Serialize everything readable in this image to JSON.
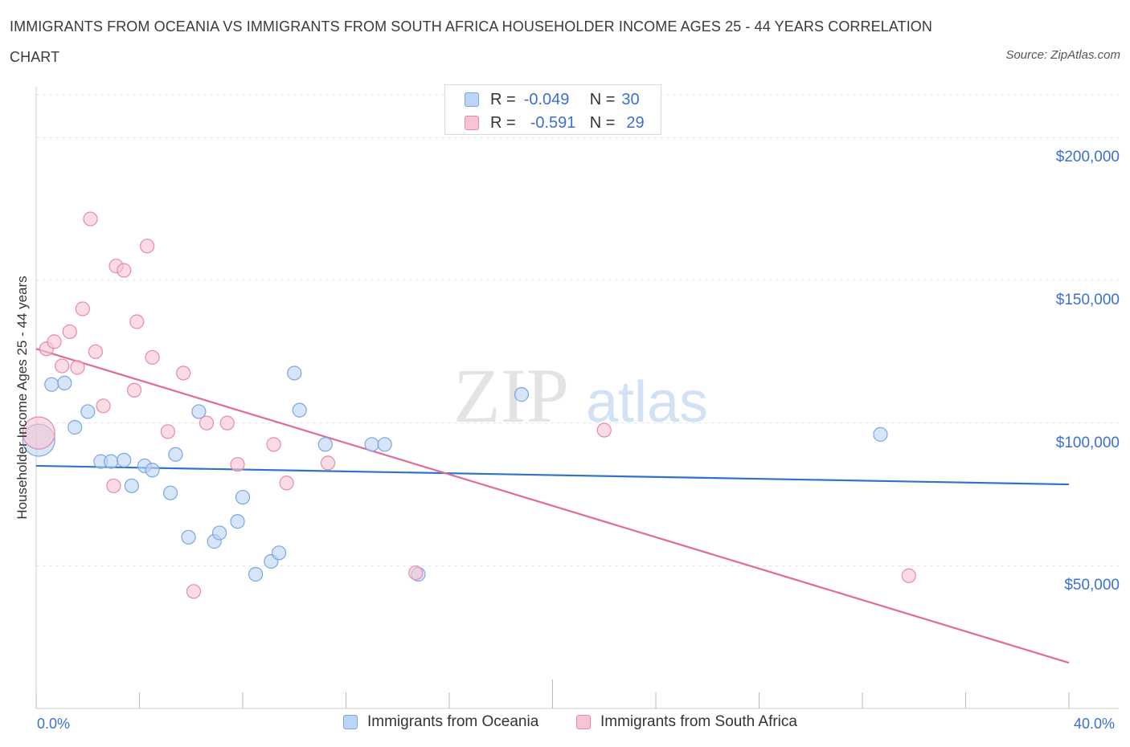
{
  "title": "IMMIGRANTS FROM OCEANIA VS IMMIGRANTS FROM SOUTH AFRICA HOUSEHOLDER INCOME AGES 25 - 44 YEARS CORRELATION CHART",
  "source": "Source: ZipAtlas.com",
  "watermark": {
    "zip": "ZIP",
    "atlas": "atlas"
  },
  "legend": {
    "r_label": "R =",
    "n_label": "N =",
    "rows": [
      {
        "r": "-0.049",
        "n": "30"
      },
      {
        "r": "-0.591",
        "n": "29"
      }
    ]
  },
  "colors": {
    "oceania_fill": "#bcd4f5",
    "oceania_stroke": "#7aa7e0",
    "oceania_line": "#2f74c8",
    "safrica_fill": "#f8c4d4",
    "safrica_stroke": "#e68aa9",
    "safrica_line": "#e06a98"
  },
  "chart_data": {
    "type": "scatter",
    "title": "IMMIGRANTS FROM OCEANIA VS IMMIGRANTS FROM SOUTH AFRICA HOUSEHOLDER INCOME AGES 25 - 44 YEARS CORRELATION CHART",
    "xlabel": "",
    "ylabel": "Householder Income Ages 25 - 44 years",
    "xlim": [
      0,
      40
    ],
    "ylim": [
      0,
      215000
    ],
    "x_tick_labels": [
      "0.0%",
      "40.0%"
    ],
    "y_ticks": [
      {
        "value": 50000,
        "label": "$50,000"
      },
      {
        "value": 100000,
        "label": "$100,000"
      },
      {
        "value": 150000,
        "label": "$150,000"
      },
      {
        "value": 200000,
        "label": "$200,000"
      }
    ],
    "grid": true,
    "legend_position": "top-center",
    "series": [
      {
        "name": "Immigrants from Oceania",
        "r": -0.049,
        "n": 30,
        "trend": {
          "x": [
            0,
            40
          ],
          "y": [
            85000,
            78500
          ]
        },
        "points": [
          {
            "x": 0.1,
            "y": 94000,
            "big": true
          },
          {
            "x": 0.6,
            "y": 113500
          },
          {
            "x": 1.1,
            "y": 114000
          },
          {
            "x": 1.5,
            "y": 98500
          },
          {
            "x": 2.0,
            "y": 104000
          },
          {
            "x": 2.5,
            "y": 86500
          },
          {
            "x": 2.9,
            "y": 86500
          },
          {
            "x": 3.4,
            "y": 87000
          },
          {
            "x": 3.7,
            "y": 78000
          },
          {
            "x": 4.2,
            "y": 85000
          },
          {
            "x": 4.5,
            "y": 83500
          },
          {
            "x": 5.2,
            "y": 75500
          },
          {
            "x": 5.4,
            "y": 89000
          },
          {
            "x": 5.9,
            "y": 60000
          },
          {
            "x": 6.3,
            "y": 104000
          },
          {
            "x": 6.9,
            "y": 58500
          },
          {
            "x": 7.1,
            "y": 61500
          },
          {
            "x": 7.8,
            "y": 65500
          },
          {
            "x": 8.0,
            "y": 74000
          },
          {
            "x": 8.5,
            "y": 47000
          },
          {
            "x": 9.1,
            "y": 51500
          },
          {
            "x": 9.4,
            "y": 54500
          },
          {
            "x": 10.0,
            "y": 117500
          },
          {
            "x": 10.2,
            "y": 104500
          },
          {
            "x": 11.2,
            "y": 92500
          },
          {
            "x": 13.0,
            "y": 92500
          },
          {
            "x": 13.5,
            "y": 92500
          },
          {
            "x": 14.8,
            "y": 47000
          },
          {
            "x": 18.8,
            "y": 110000
          },
          {
            "x": 32.7,
            "y": 96000
          }
        ]
      },
      {
        "name": "Immigrants from South Africa",
        "r": -0.591,
        "n": 29,
        "trend": {
          "x": [
            0,
            40
          ],
          "y": [
            126000,
            16000
          ]
        },
        "points": [
          {
            "x": 0.1,
            "y": 96500,
            "big": true
          },
          {
            "x": 0.4,
            "y": 126000
          },
          {
            "x": 0.7,
            "y": 128500
          },
          {
            "x": 1.0,
            "y": 120000
          },
          {
            "x": 1.3,
            "y": 132000
          },
          {
            "x": 1.6,
            "y": 119500
          },
          {
            "x": 1.8,
            "y": 140000
          },
          {
            "x": 2.1,
            "y": 171500
          },
          {
            "x": 2.3,
            "y": 125000
          },
          {
            "x": 2.6,
            "y": 106000
          },
          {
            "x": 3.0,
            "y": 78000
          },
          {
            "x": 3.1,
            "y": 155000
          },
          {
            "x": 3.4,
            "y": 153500
          },
          {
            "x": 3.8,
            "y": 111500
          },
          {
            "x": 3.9,
            "y": 135500
          },
          {
            "x": 4.3,
            "y": 162000
          },
          {
            "x": 4.5,
            "y": 123000
          },
          {
            "x": 5.1,
            "y": 97000
          },
          {
            "x": 5.7,
            "y": 117500
          },
          {
            "x": 6.1,
            "y": 41000
          },
          {
            "x": 6.6,
            "y": 100000
          },
          {
            "x": 7.4,
            "y": 100000
          },
          {
            "x": 7.8,
            "y": 85500
          },
          {
            "x": 9.2,
            "y": 92500
          },
          {
            "x": 9.7,
            "y": 79000
          },
          {
            "x": 11.3,
            "y": 86000
          },
          {
            "x": 14.7,
            "y": 47500
          },
          {
            "x": 22.0,
            "y": 97500
          },
          {
            "x": 33.8,
            "y": 46500
          }
        ]
      }
    ]
  }
}
